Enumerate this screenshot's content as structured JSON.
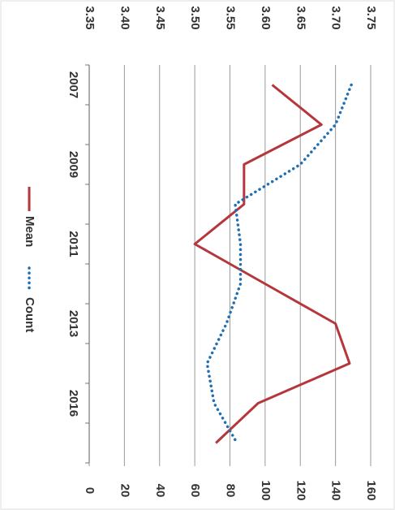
{
  "chart_data": {
    "type": "line",
    "categories": [
      "2007",
      null,
      "2009",
      null,
      "2011",
      null,
      "2013",
      null,
      "2016",
      null
    ],
    "series": [
      {
        "name": "Mean",
        "color": "#b5373c",
        "values": [
          3.61,
          3.68,
          3.57,
          3.57,
          3.5,
          3.6,
          3.7,
          3.72,
          3.59,
          3.53
        ]
      },
      {
        "name": "Count",
        "color": "#1f6fb2",
        "axis": "y2",
        "dashed": true,
        "values": [
          149,
          140,
          120,
          83,
          86,
          86,
          78,
          67,
          71,
          84
        ]
      }
    ],
    "ylim": [
      3.35,
      3.75
    ],
    "yticks": [
      3.35,
      {
        "value": 3.4,
        "label": "3.40"
      },
      3.45,
      {
        "value": 3.5,
        "label": "3.50"
      },
      3.55,
      {
        "value": 3.6,
        "label": "3.60"
      },
      3.65,
      {
        "value": 3.7,
        "label": "3.70"
      },
      3.75
    ],
    "y2lim": [
      0,
      160
    ],
    "y2ticks": [
      0,
      20,
      40,
      60,
      80,
      100,
      120,
      140,
      160
    ],
    "grid": true,
    "legend": "bottom"
  }
}
